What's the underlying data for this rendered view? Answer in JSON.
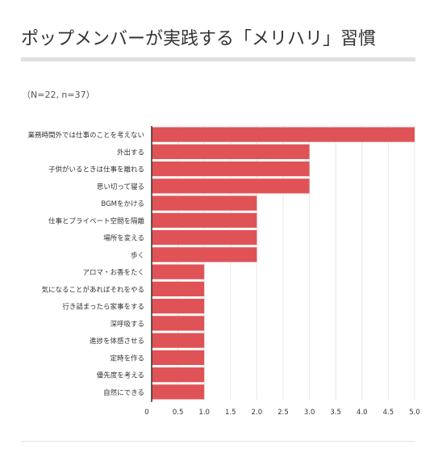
{
  "title": "ポップメンバーが実践する「メリハリ」習慣",
  "note": "（N=22, n=37）",
  "colors": {
    "bar": "#df5357",
    "axis": "#333333",
    "grid": "#e8e8e8"
  },
  "chart_data": {
    "type": "bar",
    "orientation": "horizontal",
    "categories": [
      "業務時間外では仕事のことを考えない",
      "外出する",
      "子供がいるときは仕事を離れる",
      "思い切って寝る",
      "BGMをかける",
      "仕事とプライベート空間を隔離",
      "場所を変える",
      "歩く",
      "アロマ・お香をたく",
      "気になることがあればそれをやる",
      "行き詰まったら家事をする",
      "深呼吸する",
      "進捗を体感させる",
      "定時を作る",
      "優先度を考える",
      "自然にできる"
    ],
    "values": [
      5,
      3,
      3,
      3,
      2,
      2,
      2,
      2,
      1,
      1,
      1,
      1,
      1,
      1,
      1,
      1
    ],
    "xlim": [
      0,
      5
    ],
    "xticks": [
      "0",
      "0.5",
      "1.0",
      "1.5",
      "2.0",
      "2.5",
      "3.0",
      "3.5",
      "4.0",
      "4.5",
      "5.0"
    ],
    "grid": true
  }
}
